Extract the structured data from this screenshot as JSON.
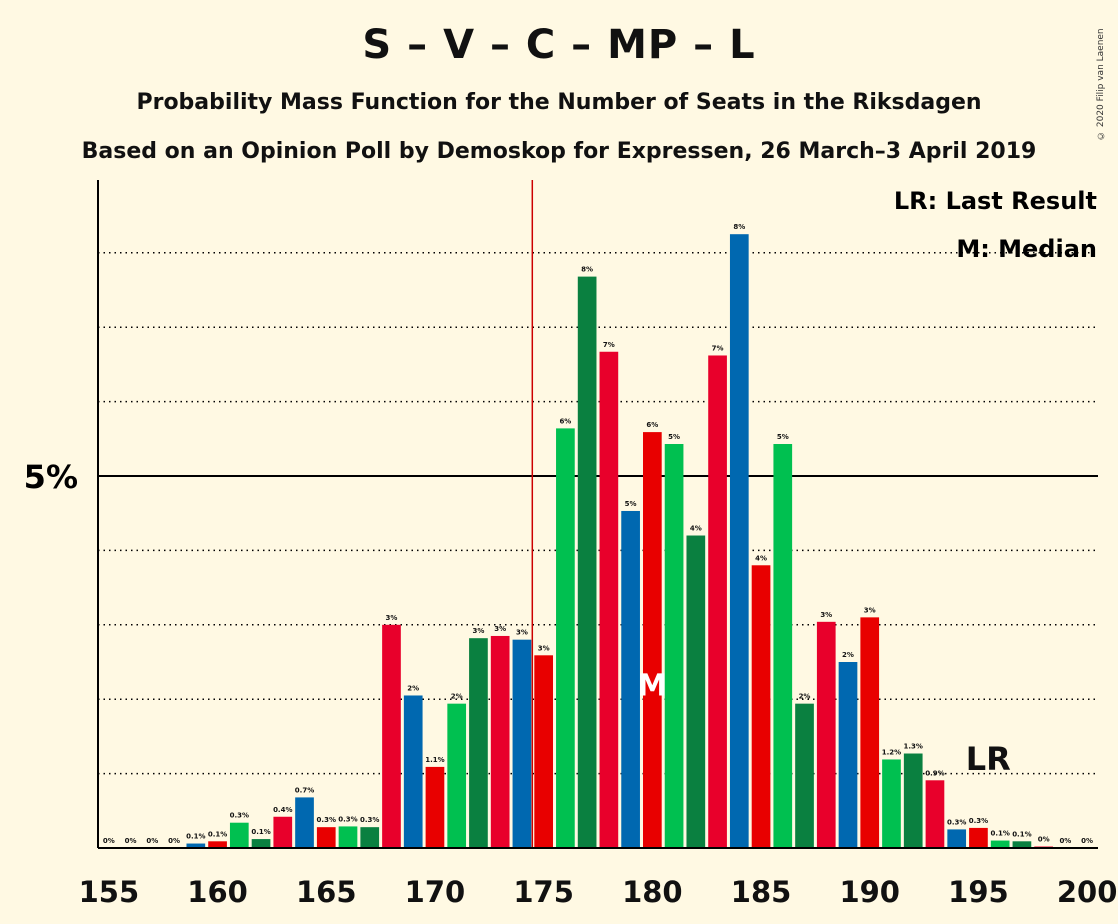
{
  "title": "S – V – C – MP – L",
  "subtitle1": "Probability Mass Function for the Number of Seats in the Riksdagen",
  "subtitle2": "Based on an Opinion Poll by Demoskop for Expressen, 26 March–3 April 2019",
  "copyright": "© 2020 Filip van Laenen",
  "legend": {
    "lr": "LR: Last Result",
    "m": "M: Median"
  },
  "markers": {
    "lr_text": "LR",
    "m_text": "M"
  },
  "colors": {
    "background": "#FFF9E3",
    "cycle": [
      "#0068B0",
      "#E80000",
      "#00C050",
      "#0A8040",
      "#E8002B"
    ],
    "last_result_line": "#CC0000",
    "median_text": "#FFFFFF"
  },
  "chart_data": {
    "type": "bar",
    "ylabel_tick": "5%",
    "x_ticks": [
      155,
      160,
      165,
      170,
      175,
      180,
      185,
      190,
      195,
      200
    ],
    "xlim": [
      154.5,
      200.5
    ],
    "ylim": [
      0,
      9
    ],
    "last_result": 175,
    "median": 180,
    "median_value": 0,
    "x": [
      155,
      156,
      157,
      158,
      159,
      160,
      161,
      162,
      163,
      164,
      165,
      166,
      167,
      168,
      169,
      170,
      171,
      172,
      173,
      174,
      175,
      176,
      177,
      178,
      179,
      180,
      181,
      182,
      183,
      184,
      185,
      186,
      187,
      188,
      189,
      190,
      191,
      192,
      193,
      194,
      195,
      196,
      197,
      198,
      199,
      200
    ],
    "values": [
      0,
      0,
      0,
      0,
      0.06,
      0.09,
      0.34,
      0.12,
      0.42,
      0.68,
      0.28,
      0.29,
      0.28,
      3.0,
      2.05,
      1.09,
      1.94,
      2.82,
      2.85,
      2.8,
      2.59,
      5.64,
      7.68,
      6.67,
      4.53,
      5.59,
      5.43,
      4.2,
      6.62,
      8.25,
      3.8,
      5.43,
      1.94,
      3.04,
      2.5,
      3.1,
      1.19,
      1.27,
      0.91,
      0.25,
      0.27,
      0.1,
      0.09,
      0.02,
      0,
      0
    ],
    "labels": [
      "0%",
      "0%",
      "0%",
      "0%",
      "0.1%",
      "0.1%",
      "0.3%",
      "0.1%",
      "0.4%",
      "0.7%",
      "0.3%",
      "0.3%",
      "0.3%",
      "3%",
      "2%",
      "1.1%",
      "2%",
      "3%",
      "3%",
      "3%",
      "3%",
      "6%",
      "8%",
      "7%",
      "5%",
      "6%",
      "5%",
      "4%",
      "7%",
      "8%",
      "4%",
      "5%",
      "2%",
      "3%",
      "2%",
      "3%",
      "1.2%",
      "1.3%",
      "0.9%",
      "0.3%",
      "0.3%",
      "0.1%",
      "0.1%",
      "0%",
      "0%",
      "0%"
    ]
  }
}
